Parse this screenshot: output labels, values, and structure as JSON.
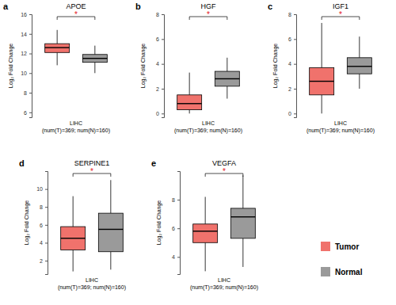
{
  "chart_data": [
    {
      "type": "box",
      "panel": "a",
      "title": "APOE",
      "y_label": "Log₂ Fold Change",
      "x_label": [
        "LIHC",
        "(num(T)=369; num(N)=160)"
      ],
      "annotation": "*",
      "ylim": [
        5.5,
        16
      ],
      "yticks": [
        6,
        8,
        10,
        12,
        14,
        16
      ],
      "legend": "bottom-right",
      "series": [
        {
          "name": "Tumor",
          "color": "#f0726c",
          "min": 10.8,
          "q1": 12.1,
          "median": 12.6,
          "q3": 13.0,
          "max": 14.4
        },
        {
          "name": "Normal",
          "color": "#9a9a9a",
          "min": 10.0,
          "q1": 11.1,
          "median": 11.5,
          "q3": 11.9,
          "max": 12.8
        }
      ]
    },
    {
      "type": "box",
      "panel": "b",
      "title": "HGF",
      "y_label": "Log₂ Fold Change",
      "x_label": [
        "LIHC",
        "(num(T)=369; num(N)=160)"
      ],
      "annotation": "*",
      "ylim": [
        -0.3,
        8
      ],
      "yticks": [
        0,
        2,
        4,
        6,
        8
      ],
      "series": [
        {
          "name": "Tumor",
          "color": "#f0726c",
          "min": 0,
          "q1": 0.3,
          "median": 0.8,
          "q3": 1.5,
          "max": 3.3
        },
        {
          "name": "Normal",
          "color": "#9a9a9a",
          "min": 1.2,
          "q1": 2.2,
          "median": 2.8,
          "q3": 3.4,
          "max": 4.5
        }
      ]
    },
    {
      "type": "box",
      "panel": "c",
      "title": "IGF1",
      "y_label": "Log₂ Fold Change",
      "x_label": [
        "LIHC",
        "(num(T)=369; num(N)=160)"
      ],
      "annotation": "*",
      "ylim": [
        -0.3,
        8
      ],
      "yticks": [
        0,
        2,
        4,
        6,
        8
      ],
      "series": [
        {
          "name": "Tumor",
          "color": "#f0726c",
          "min": 0,
          "q1": 1.5,
          "median": 2.6,
          "q3": 3.7,
          "max": 7.3
        },
        {
          "name": "Normal",
          "color": "#9a9a9a",
          "min": 2.0,
          "q1": 3.2,
          "median": 3.8,
          "q3": 4.5,
          "max": 6.2
        }
      ]
    },
    {
      "type": "box",
      "panel": "d",
      "title": "SERPINE1",
      "y_label": "Log₂ Fold Change",
      "x_label": [
        "LIHC",
        "(num(T)=369; num(N)=160)"
      ],
      "annotation": "*",
      "ylim": [
        0.5,
        12
      ],
      "yticks": [
        2,
        4,
        6,
        8,
        10
      ],
      "series": [
        {
          "name": "Tumor",
          "color": "#f0726c",
          "min": 0.8,
          "q1": 3.2,
          "median": 4.5,
          "q3": 5.8,
          "max": 9.2
        },
        {
          "name": "Normal",
          "color": "#9a9a9a",
          "min": 1.0,
          "q1": 3.0,
          "median": 5.5,
          "q3": 7.3,
          "max": 11.0
        }
      ]
    },
    {
      "type": "box",
      "panel": "e",
      "title": "VEGFA",
      "y_label": "Log₂ Fold Change",
      "x_label": [
        "LIHC",
        "(num(T)=369; num(N)=160)"
      ],
      "annotation": "*",
      "ylim": [
        2.8,
        10
      ],
      "yticks": [
        4,
        6,
        8
      ],
      "series": [
        {
          "name": "Tumor",
          "color": "#f0726c",
          "min": 3.0,
          "q1": 5.0,
          "median": 5.8,
          "q3": 6.3,
          "max": 8.2
        },
        {
          "name": "Normal",
          "color": "#9a9a9a",
          "min": 3.3,
          "q1": 5.3,
          "median": 6.8,
          "q3": 7.4,
          "max": 9.7
        }
      ]
    }
  ]
}
